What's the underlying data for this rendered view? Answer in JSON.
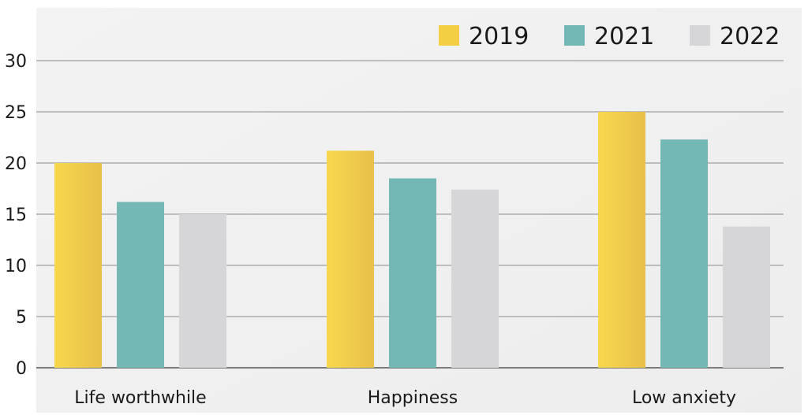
{
  "chart_data": {
    "type": "bar",
    "title": "",
    "xlabel": "",
    "ylabel": "",
    "categories": [
      "Life worthwhile",
      "Happiness",
      "Low anxiety"
    ],
    "series": [
      {
        "name": "2019",
        "values": [
          20.0,
          21.2,
          25.0
        ],
        "color": "#f2cf45"
      },
      {
        "name": "2021",
        "values": [
          16.2,
          18.5,
          22.3
        ],
        "color": "#74b8b6"
      },
      {
        "name": "2022",
        "values": [
          15.0,
          17.4,
          13.8
        ],
        "color": "#d6d6d8"
      }
    ],
    "ylim": [
      0,
      30
    ],
    "yticks": [
      0,
      5,
      10,
      15,
      20,
      25,
      30
    ],
    "grid": true,
    "legend_position": "top-right"
  }
}
